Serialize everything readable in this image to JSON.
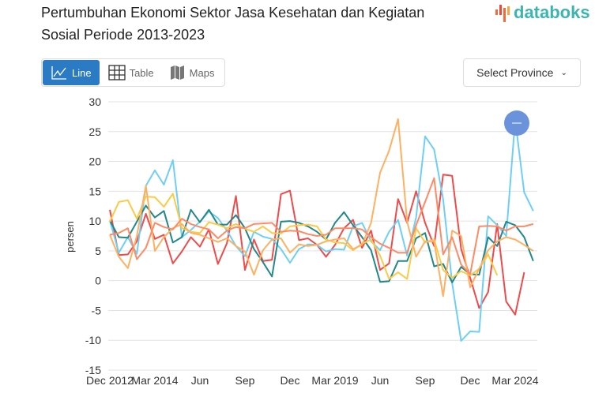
{
  "header": {
    "title_line1": "Pertumbuhan Ekonomi Sektor Jasa Kesehatan dan Kegiatan",
    "title_line2": "Sosial Periode 2013-2023",
    "logo": "databoks"
  },
  "toolbar": {
    "views": [
      {
        "label": "Line",
        "icon": "line-chart-icon",
        "active": true
      },
      {
        "label": "Table",
        "icon": "table-icon",
        "active": false
      },
      {
        "label": "Maps",
        "icon": "map-icon",
        "active": false
      }
    ],
    "province_select": "Select Province"
  },
  "colors": {
    "accent": "#2b7bc4",
    "zoom_button": "#6a93dc"
  },
  "chart_data": {
    "type": "line",
    "ylabel": "persen",
    "xlabel": "",
    "ylim": [
      -15,
      30
    ],
    "yticks": [
      30,
      25,
      20,
      15,
      10,
      5,
      0,
      -5,
      -10,
      -15
    ],
    "grid": true,
    "x_start": "Dec 2012",
    "x_interval": "quarterly",
    "xtick_labels": [
      "Dec 2012",
      "Mar 2014",
      "Jun",
      "Sep",
      "Dec",
      "Mar 2019",
      "Jun",
      "Sep",
      "Dec",
      "Mar 2024"
    ],
    "xtick_indices": [
      0,
      5,
      10,
      15,
      20,
      25,
      30,
      35,
      40,
      45
    ],
    "series": [
      {
        "color": "#f04a4a",
        "values": [
          11.9,
          4.3,
          4.4,
          6.6,
          11.2,
          7.0,
          7.7,
          2.9,
          4.9,
          7.3,
          5.7,
          8.6,
          2.8,
          6.3,
          14.2,
          1.8,
          6.9,
          3.3,
          3.5,
          14.5,
          15.1,
          6.8,
          7.1,
          6.0,
          4.0,
          6.0,
          8.8,
          10.2,
          5.5,
          8.4,
          1.8,
          2.9,
          13.7,
          9.7,
          15.0,
          9.7,
          5.8,
          17.8,
          17.6,
          5.3,
          0.5,
          -4.6,
          -1.9,
          9.5,
          -3.5,
          -5.7,
          1.4,
          null
        ]
      },
      {
        "color": "#6ecff6",
        "values": [
          10.1,
          4.7,
          7.3,
          4.5,
          15.9,
          18.5,
          16.1,
          20.2,
          7.3,
          8.5,
          9.9,
          11.6,
          10.5,
          8.4,
          5.8,
          4.1,
          8.2,
          7.4,
          7.0,
          5.3,
          3.0,
          5.3,
          6.1,
          6.0,
          4.9,
          5.3,
          5.2,
          9.1,
          9.7,
          6.6,
          5.1,
          8.2,
          10.2,
          4.2,
          10.6,
          24.2,
          22.0,
          13.7,
          -0.4,
          -10.1,
          -8.5,
          -8.6,
          10.8,
          9.3,
          7.5,
          27.0,
          14.8,
          11.7
        ]
      },
      {
        "color": "#23888a",
        "values": [
          10.1,
          7.3,
          7.2,
          9.9,
          12.6,
          10.6,
          11.7,
          6.4,
          7.3,
          11.9,
          9.8,
          11.9,
          9.4,
          9.4,
          11.0,
          8.8,
          5.3,
          3.1,
          0.7,
          9.9,
          10.0,
          9.7,
          9.1,
          8.2,
          6.9,
          9.7,
          11.5,
          9.3,
          7.3,
          5.1,
          -0.2,
          -0.1,
          3.3,
          3.3,
          7.1,
          8.0,
          2.4,
          2.8,
          -0.3,
          2.3,
          1.1,
          1.0,
          7.3,
          5.8,
          9.9,
          9.3,
          7.3,
          3.3
        ]
      },
      {
        "color": "#fcca46",
        "values": [
          9.9,
          13.2,
          13.5,
          10.4,
          14.1,
          14.0,
          12.4,
          14.6,
          8.8,
          8.2,
          8.0,
          9.8,
          9.4,
          8.8,
          9.5,
          8.7,
          8.2,
          9.1,
          8.0,
          7.9,
          9.1,
          9.3,
          9.4,
          9.1,
          6.9,
          6.4,
          6.3,
          5.1,
          6.2,
          6.9,
          4.2,
          0.3,
          1.4,
          0.3,
          8.8,
          6.4,
          6.9,
          1.8,
          0.5,
          1.6,
          0.9,
          2.0,
          4.4,
          0.9,
          null,
          null,
          null,
          null
        ]
      },
      {
        "color": "#ffb060",
        "values": [
          7.7,
          4.0,
          2.1,
          7.5,
          15.9,
          5.0,
          7.3,
          8.8,
          9.5,
          8.0,
          7.7,
          7.1,
          6.5,
          7.1,
          5.8,
          4.9,
          1.0,
          5.1,
          6.9,
          7.1,
          4.7,
          6.1,
          5.8,
          6.0,
          6.6,
          6.9,
          7.1,
          5.3,
          6.0,
          9.7,
          18.1,
          21.8,
          27.1,
          9.9,
          4.0,
          6.6,
          6.6,
          -2.6,
          8.4,
          7.5,
          -1.1,
          2.0,
          5.1,
          6.6,
          7.3,
          6.9,
          6.0,
          5.0
        ]
      },
      {
        "color": "#ff8a65",
        "values": [
          7.7,
          8.0,
          8.8,
          3.6,
          5.5,
          9.7,
          9.0,
          8.6,
          10.4,
          9.5,
          9.0,
          8.6,
          7.1,
          8.4,
          9.0,
          8.8,
          9.5,
          9.6,
          9.7,
          8.2,
          8.4,
          8.3,
          7.8,
          7.5,
          7.7,
          8.8,
          8.8,
          8.8,
          8.6,
          7.3,
          6.2,
          5.5,
          4.7,
          4.7,
          9.3,
          13.2,
          17.2,
          4.4,
          7.3,
          2.7,
          1.1,
          9.1,
          9.2,
          9.1,
          8.4,
          9.1,
          9.1,
          9.5
        ]
      }
    ]
  }
}
